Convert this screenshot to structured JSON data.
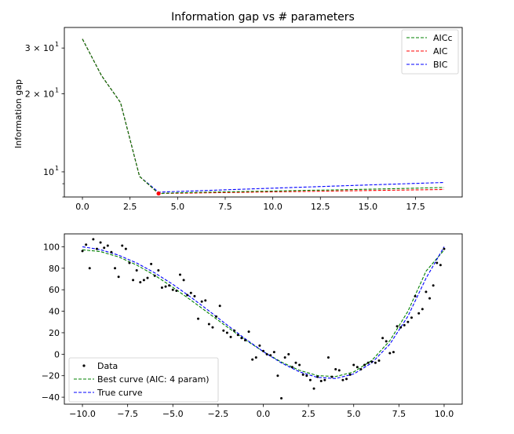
{
  "chart_data": [
    {
      "type": "line",
      "title": "Information gap vs # parameters",
      "xlabel": "",
      "ylabel": "Information gap",
      "y_scale": "log",
      "xlim": [
        -0.95,
        19.95
      ],
      "ylim": [
        8.0,
        36.0
      ],
      "xticks": [
        0,
        2.5,
        5,
        7.5,
        10,
        12.5,
        15,
        17.5
      ],
      "xtick_labels": [
        "0.0",
        "2.5",
        "5.0",
        "7.5",
        "10.0",
        "12.5",
        "15.0",
        "17.5"
      ],
      "yticks": [
        {
          "value": 30,
          "base": "3 × 10",
          "exp": "1"
        },
        {
          "value": 20,
          "base": "2 × 10",
          "exp": "1"
        },
        {
          "value": 10,
          "base": "10",
          "exp": "1"
        }
      ],
      "grid": false,
      "legend_position": "top-right",
      "x": [
        0,
        1,
        2,
        3,
        4,
        5,
        6,
        7,
        8,
        9,
        10,
        11,
        12,
        13,
        14,
        15,
        16,
        17,
        18,
        19
      ],
      "series": [
        {
          "name": "AICc",
          "color": "#008000",
          "values": [
            32.5,
            23.5,
            18.5,
            9.6,
            8.25,
            8.3,
            8.33,
            8.36,
            8.38,
            8.41,
            8.43,
            8.46,
            8.49,
            8.51,
            8.54,
            8.57,
            8.6,
            8.63,
            8.67,
            8.7
          ]
        },
        {
          "name": "AIC",
          "color": "#ff0000",
          "values": [
            32.5,
            23.5,
            18.5,
            9.6,
            8.25,
            8.27,
            8.29,
            8.31,
            8.33,
            8.35,
            8.37,
            8.39,
            8.41,
            8.43,
            8.45,
            8.47,
            8.49,
            8.51,
            8.53,
            8.55
          ]
        },
        {
          "name": "BIC",
          "color": "#0000ff",
          "values": [
            32.5,
            23.5,
            18.5,
            9.6,
            8.35,
            8.4,
            8.45,
            8.5,
            8.55,
            8.6,
            8.65,
            8.7,
            8.75,
            8.8,
            8.85,
            8.9,
            8.95,
            9.0,
            9.05,
            9.1
          ]
        }
      ],
      "highlight": {
        "x": 4,
        "value": 8.25,
        "color": "#ff0000"
      }
    },
    {
      "type": "scatter",
      "title": "",
      "xlabel": "",
      "ylabel": "",
      "xlim": [
        -11.0,
        11.0
      ],
      "ylim": [
        -46.5,
        112.0
      ],
      "xticks": [
        -10,
        -7.5,
        -5,
        -2.5,
        0,
        2.5,
        5,
        7.5,
        10
      ],
      "xtick_labels": [
        "−10.0",
        "−7.5",
        "−5.0",
        "−2.5",
        "0.0",
        "2.5",
        "5.0",
        "7.5",
        "10.0"
      ],
      "yticks": [
        -40,
        -20,
        0,
        20,
        40,
        60,
        80,
        100
      ],
      "ytick_labels": [
        "−40",
        "−20",
        "0",
        "20",
        "40",
        "60",
        "80",
        "100"
      ],
      "grid": false,
      "legend_position": "bottom-left",
      "scatter": {
        "name": "Data",
        "color": "#000000",
        "points": [
          [
            -10.0,
            96
          ],
          [
            -9.8,
            102
          ],
          [
            -9.6,
            80
          ],
          [
            -9.4,
            107
          ],
          [
            -9.2,
            98
          ],
          [
            -9.0,
            104
          ],
          [
            -8.8,
            99
          ],
          [
            -8.6,
            101
          ],
          [
            -8.4,
            95
          ],
          [
            -8.2,
            80
          ],
          [
            -8.0,
            72
          ],
          [
            -7.8,
            101
          ],
          [
            -7.6,
            98
          ],
          [
            -7.4,
            85
          ],
          [
            -7.2,
            69
          ],
          [
            -7.0,
            78
          ],
          [
            -6.8,
            67
          ],
          [
            -6.6,
            69
          ],
          [
            -6.4,
            71
          ],
          [
            -6.2,
            84
          ],
          [
            -6.0,
            73
          ],
          [
            -5.8,
            78
          ],
          [
            -5.6,
            62
          ],
          [
            -5.4,
            63
          ],
          [
            -5.2,
            64
          ],
          [
            -5.0,
            60
          ],
          [
            -4.8,
            59
          ],
          [
            -4.6,
            74
          ],
          [
            -4.4,
            69
          ],
          [
            -4.2,
            55
          ],
          [
            -4.0,
            57
          ],
          [
            -3.8,
            54
          ],
          [
            -3.6,
            33
          ],
          [
            -3.4,
            49
          ],
          [
            -3.2,
            50
          ],
          [
            -3.0,
            28
          ],
          [
            -2.8,
            25
          ],
          [
            -2.6,
            35
          ],
          [
            -2.4,
            45
          ],
          [
            -2.2,
            22
          ],
          [
            -2.0,
            20
          ],
          [
            -1.8,
            16
          ],
          [
            -1.6,
            22
          ],
          [
            -1.4,
            18
          ],
          [
            -1.2,
            15
          ],
          [
            -1.0,
            13
          ],
          [
            -0.8,
            21
          ],
          [
            -0.6,
            -5
          ],
          [
            -0.4,
            -3
          ],
          [
            -0.2,
            8
          ],
          [
            0.0,
            3
          ],
          [
            0.2,
            0
          ],
          [
            0.4,
            -1
          ],
          [
            0.6,
            2
          ],
          [
            0.8,
            -20
          ],
          [
            1.0,
            -41
          ],
          [
            1.2,
            -3
          ],
          [
            1.4,
            0
          ],
          [
            1.6,
            -12
          ],
          [
            1.8,
            -8
          ],
          [
            2.0,
            -10
          ],
          [
            2.2,
            -19
          ],
          [
            2.4,
            -20
          ],
          [
            2.6,
            -24
          ],
          [
            2.8,
            -32
          ],
          [
            3.0,
            -21
          ],
          [
            3.2,
            -25
          ],
          [
            3.4,
            -24
          ],
          [
            3.6,
            -3
          ],
          [
            3.8,
            -21
          ],
          [
            4.0,
            -14
          ],
          [
            4.2,
            -15
          ],
          [
            4.4,
            -24
          ],
          [
            4.6,
            -23
          ],
          [
            4.8,
            -19
          ],
          [
            5.0,
            -10
          ],
          [
            5.2,
            -12
          ],
          [
            5.4,
            -14
          ],
          [
            5.6,
            -10
          ],
          [
            5.8,
            -8
          ],
          [
            6.0,
            -7
          ],
          [
            6.2,
            -8
          ],
          [
            6.4,
            -6
          ],
          [
            6.6,
            15
          ],
          [
            6.8,
            12
          ],
          [
            7.0,
            1
          ],
          [
            7.2,
            2
          ],
          [
            7.4,
            26
          ],
          [
            7.6,
            25
          ],
          [
            7.8,
            27
          ],
          [
            8.0,
            30
          ],
          [
            8.2,
            34
          ],
          [
            8.4,
            54
          ],
          [
            8.6,
            38
          ],
          [
            8.8,
            42
          ],
          [
            9.0,
            58
          ],
          [
            9.2,
            52
          ],
          [
            9.4,
            64
          ],
          [
            9.6,
            85
          ],
          [
            9.8,
            83
          ],
          [
            10.0,
            98
          ]
        ]
      },
      "series": [
        {
          "name": "Best curve (AIC: 4 param)",
          "color": "#008000",
          "x": [
            -10,
            -9,
            -8,
            -7,
            -6,
            -5,
            -4,
            -3,
            -2,
            -1,
            0,
            1,
            2,
            3,
            4,
            5,
            6,
            7,
            8,
            9,
            10
          ],
          "values": [
            97.2,
            95.5,
            90.6,
            83.0,
            73.4,
            62.3,
            50.3,
            37.9,
            25.4,
            13.5,
            2.4,
            -7.3,
            -15.0,
            -19.9,
            -20.8,
            -16.5,
            -5.8,
            12.6,
            40.0,
            77.3,
            97.0
          ]
        },
        {
          "name": "True curve",
          "color": "#0000ff",
          "x": [
            -10,
            -9,
            -8,
            -7,
            -6,
            -5,
            -4,
            -3,
            -2,
            -1,
            0,
            1,
            2,
            3,
            4,
            5,
            6,
            7,
            8,
            9,
            10
          ],
          "values": [
            100,
            97.3,
            92.2,
            84.9,
            75.7,
            65.0,
            53.0,
            40.3,
            27.2,
            14.4,
            2.4,
            -8.1,
            -16.4,
            -21.6,
            -22.6,
            -18.4,
            -8.1,
            9.4,
            35.4,
            70.7,
            100
          ]
        }
      ]
    }
  ]
}
